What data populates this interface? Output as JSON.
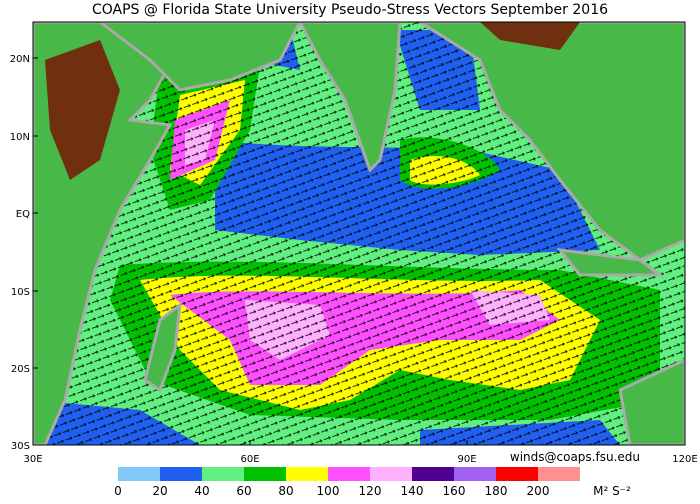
{
  "title": "COAPS @ Florida State University Pseudo-Stress Vectors September 2016",
  "map": {
    "lat_labels": [
      "20N",
      "10N",
      "EQ",
      "10S",
      "20S",
      "30S"
    ],
    "lon_labels": [
      "30E",
      "60E",
      "90E",
      "120E"
    ]
  },
  "credit": "winds@coaps.fsu.edu",
  "colorbar": {
    "colors": [
      "#80c8f8",
      "#2060f0",
      "#60f080",
      "#00c000",
      "#ffff00",
      "#ff50ff",
      "#ffb0ff",
      "#500090",
      "#a060f0",
      "#ff0000",
      "#ff9090"
    ],
    "ticks": [
      0,
      20,
      40,
      60,
      80,
      100,
      120,
      140,
      160,
      180,
      200
    ],
    "units": "M² S⁻²"
  }
}
